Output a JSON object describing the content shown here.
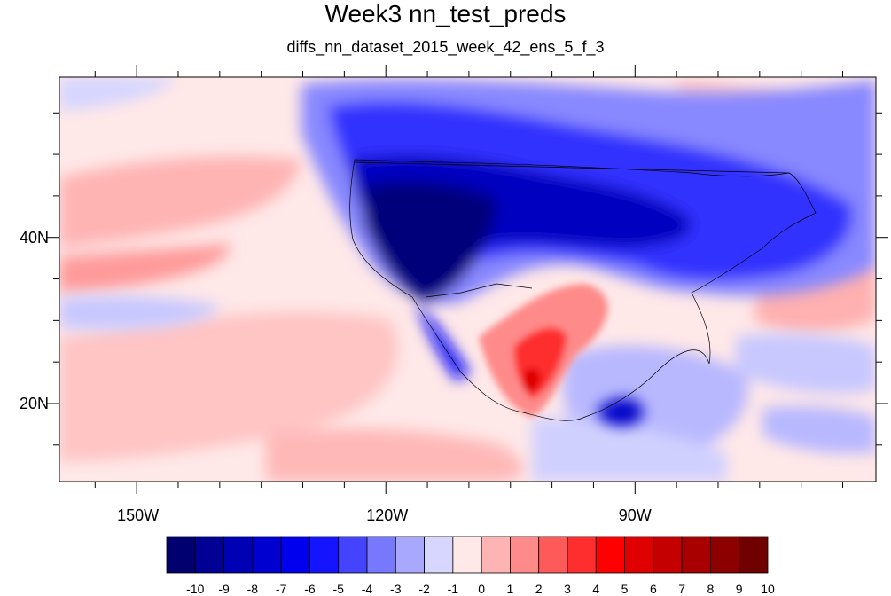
{
  "title": "Week3 nn_test_preds",
  "subtitle": "diffs_nn_dataset_2015_week_42_ens_5_f_3",
  "map": {
    "lon_ticks": [
      {
        "label": "150W",
        "lon": -150
      },
      {
        "label": "120W",
        "lon": -120
      },
      {
        "label": "90W",
        "lon": -90
      }
    ],
    "lat_ticks": [
      {
        "label": "40N",
        "lat": 40
      },
      {
        "label": "20N",
        "lat": 20
      }
    ]
  },
  "colorbar": {
    "labels": [
      "-10",
      "-9",
      "-8",
      "-7",
      "-6",
      "-5",
      "-4",
      "-3",
      "-2",
      "-1",
      "0",
      "1",
      "2",
      "3",
      "4",
      "5",
      "6",
      "7",
      "8",
      "9",
      "10"
    ],
    "colors": [
      "#00006e",
      "#000094",
      "#0000b4",
      "#0000d0",
      "#0000ee",
      "#1414ff",
      "#4444ff",
      "#7878ff",
      "#a8a8ff",
      "#d6d6ff",
      "#ffe8e8",
      "#ffb4b4",
      "#ff8a8a",
      "#ff5a5a",
      "#ff2e2e",
      "#ff0000",
      "#e00000",
      "#c40000",
      "#a80000",
      "#8c0000",
      "#700000"
    ]
  }
}
